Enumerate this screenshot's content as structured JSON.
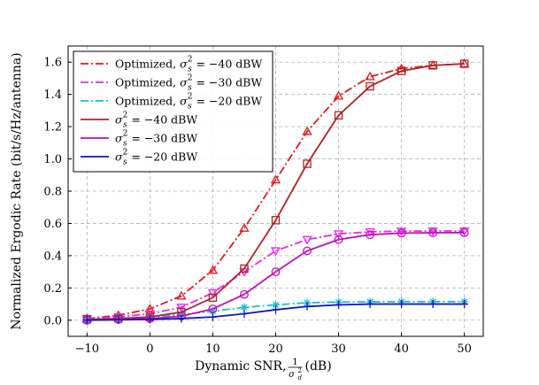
{
  "chart_data": {
    "type": "line",
    "xlabel": "Dynamic SNR, ",
    "xlabel_frac": {
      "num": "1",
      "den": "σ",
      "den_sub": "d",
      "den_sup": "2"
    },
    "xlabel_unit": " (dB)",
    "ylabel": "Normalized Ergodic Rate (bit/s/Hz/antenna)",
    "xlim": [
      -13,
      53
    ],
    "ylim": [
      -0.1,
      1.7
    ],
    "xticks": [
      -10,
      0,
      10,
      20,
      30,
      40,
      50
    ],
    "xtick_labels": [
      "−10",
      "0",
      "10",
      "20",
      "30",
      "40",
      "50"
    ],
    "yticks": [
      0.0,
      0.2,
      0.4,
      0.6,
      0.8,
      1.0,
      1.2,
      1.4,
      1.6
    ],
    "ytick_labels": [
      "0.0",
      "0.2",
      "0.4",
      "0.6",
      "0.8",
      "1.0",
      "1.2",
      "1.4",
      "1.6"
    ],
    "grid": true,
    "legend_position": "top-left",
    "x": [
      -10,
      -5,
      0,
      5,
      10,
      15,
      20,
      25,
      30,
      35,
      40,
      45,
      50
    ],
    "series": [
      {
        "name_prefix": "Optimized, ",
        "sigma_value": " = −40 dBW",
        "color": "#e8141c",
        "linestyle": "dashdot",
        "marker": "triangle-up",
        "values": [
          0.01,
          0.03,
          0.07,
          0.15,
          0.31,
          0.57,
          0.87,
          1.17,
          1.39,
          1.51,
          1.56,
          1.58,
          1.59
        ]
      },
      {
        "name_prefix": "Optimized, ",
        "sigma_value": " = −30 dBW",
        "color": "#ee22ee",
        "linestyle": "dashdot",
        "marker": "triangle-down",
        "values": [
          0.01,
          0.02,
          0.04,
          0.08,
          0.17,
          0.3,
          0.43,
          0.5,
          0.535,
          0.548,
          0.552,
          0.553,
          0.553
        ]
      },
      {
        "name_prefix": "Optimized, ",
        "sigma_value": " = −20 dBW",
        "color": "#16c0c8",
        "linestyle": "dashdot",
        "marker": "star",
        "values": [
          0.005,
          0.01,
          0.02,
          0.035,
          0.055,
          0.08,
          0.095,
          0.108,
          0.112,
          0.114,
          0.115,
          0.115,
          0.115
        ]
      },
      {
        "name_prefix": "",
        "sigma_value": " = −40 dBW",
        "color": "#b22222",
        "linestyle": "solid",
        "marker": "square",
        "values": [
          0.005,
          0.01,
          0.02,
          0.05,
          0.14,
          0.32,
          0.62,
          0.97,
          1.27,
          1.45,
          1.545,
          1.58,
          1.59
        ]
      },
      {
        "name_prefix": "",
        "sigma_value": " = −30 dBW",
        "color": "#bb11bb",
        "linestyle": "solid",
        "marker": "circle",
        "values": [
          0.0,
          0.005,
          0.01,
          0.025,
          0.07,
          0.16,
          0.3,
          0.43,
          0.5,
          0.53,
          0.54,
          0.542,
          0.543
        ]
      },
      {
        "name_prefix": "",
        "sigma_value": " = −20 dBW",
        "color": "#1111cc",
        "linestyle": "solid",
        "marker": "plus",
        "values": [
          0.0,
          0.002,
          0.005,
          0.01,
          0.02,
          0.04,
          0.065,
          0.085,
          0.095,
          0.1,
          0.1,
          0.1,
          0.1
        ]
      }
    ]
  }
}
